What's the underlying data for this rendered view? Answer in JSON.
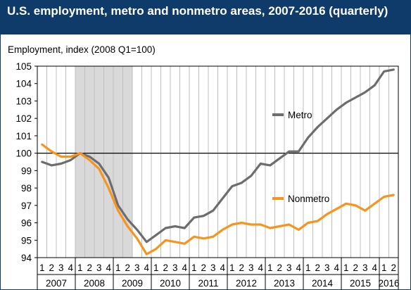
{
  "title": "U.S. employment, metro and nonmetro areas, 2007-2016 (quarterly)",
  "colors": {
    "header_bg": "#0f3b6a",
    "recession_shade": "#d9d9d9",
    "gridline": "#bfbfbf",
    "metro": "#6d6d6d",
    "nonmetro": "#f7941d"
  },
  "chart_data": {
    "type": "line",
    "title": "U.S. employment, metro and nonmetro areas, 2007-2016 (quarterly)",
    "ylabel": "Employment, index (2008 Q1=100)",
    "xlabel": "",
    "ylim": [
      94,
      105
    ],
    "y_ticks": [
      "94",
      "95",
      "96",
      "97",
      "98",
      "99",
      "100",
      "101",
      "102",
      "103",
      "104",
      "105"
    ],
    "reference_line": 100,
    "grid": "vertical gridlines between quarters",
    "recession_shading": {
      "start": "2008 Q1",
      "end": "2009 Q2"
    },
    "quarter_labels": [
      "1",
      "2",
      "3",
      "4",
      "1",
      "2",
      "3",
      "4",
      "1",
      "2",
      "3",
      "4",
      "1",
      "2",
      "3",
      "4",
      "1",
      "2",
      "3",
      "4",
      "1",
      "2",
      "3",
      "4",
      "1",
      "2",
      "3",
      "4",
      "1",
      "2",
      "3",
      "4",
      "1",
      "2",
      "3",
      "4",
      "1",
      "2"
    ],
    "year_labels": [
      "2007",
      "2008",
      "2009",
      "2010",
      "2011",
      "2012",
      "2013",
      "2014",
      "2015",
      "2016"
    ],
    "series": [
      {
        "name": "Metro",
        "color": "#6d6d6d",
        "values": [
          99.5,
          99.3,
          99.4,
          99.6,
          100.0,
          99.8,
          99.4,
          98.6,
          97.0,
          96.2,
          95.6,
          94.9,
          95.3,
          95.7,
          95.8,
          95.7,
          96.3,
          96.4,
          96.7,
          97.4,
          98.1,
          98.3,
          98.7,
          99.4,
          99.3,
          99.7,
          100.1,
          100.1,
          100.9,
          101.5,
          102.0,
          102.5,
          102.9,
          103.2,
          103.5,
          103.9,
          104.7,
          104.8
        ]
      },
      {
        "name": "Nonmetro",
        "color": "#f7941d",
        "values": [
          100.5,
          100.1,
          99.8,
          99.8,
          100.0,
          99.6,
          99.1,
          98.0,
          96.7,
          95.8,
          95.1,
          94.2,
          94.5,
          95.0,
          94.9,
          94.8,
          95.2,
          95.1,
          95.2,
          95.6,
          95.9,
          96.0,
          95.9,
          95.9,
          95.7,
          95.8,
          95.9,
          95.6,
          96.0,
          96.1,
          96.5,
          96.8,
          97.1,
          97.0,
          96.7,
          97.1,
          97.5,
          97.6
        ]
      }
    ],
    "legend": [
      {
        "name": "Metro",
        "placement": "beside line, upper middle"
      },
      {
        "name": "Nonmetro",
        "placement": "beside line, lower middle"
      }
    ]
  }
}
